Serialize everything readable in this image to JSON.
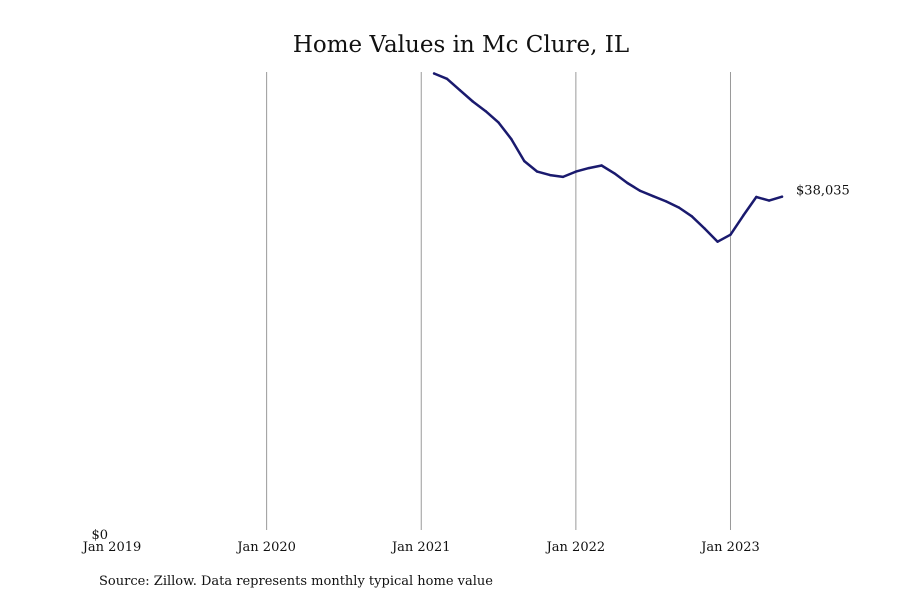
{
  "chart_data": {
    "type": "line",
    "title": "Home Values in Mc Clure, IL",
    "source": "Source: Zillow. Data represents monthly typical home value",
    "xlabel": "",
    "ylabel": "",
    "x_ticks": [
      "Jan 2019",
      "Jan 2020",
      "Jan 2021",
      "Jan 2022",
      "Jan 2023"
    ],
    "y_ticks": [
      "$0"
    ],
    "xlim": [
      "2019-01",
      "2024-02"
    ],
    "ylim": [
      0,
      52500
    ],
    "grid": "vertical",
    "series": [
      {
        "color": "#1a1a6e",
        "end_label": "$38,035",
        "x": [
          "2021-02",
          "2021-03",
          "2021-04",
          "2021-05",
          "2021-06",
          "2021-07",
          "2021-08",
          "2021-09",
          "2021-10",
          "2021-11",
          "2021-12",
          "2022-01",
          "2022-02",
          "2022-03",
          "2022-04",
          "2022-05",
          "2022-06",
          "2022-07",
          "2022-08",
          "2022-09",
          "2022-10",
          "2022-11",
          "2022-12",
          "2023-01",
          "2023-02",
          "2023-03",
          "2023-04",
          "2023-05"
        ],
        "values": [
          52100,
          51500,
          50200,
          48900,
          47800,
          46500,
          44600,
          42100,
          40900,
          40500,
          40300,
          40900,
          41300,
          41600,
          40700,
          39600,
          38700,
          38100,
          37500,
          36800,
          35800,
          34400,
          32900,
          33700,
          35900,
          38000,
          37600,
          38035
        ]
      }
    ]
  }
}
